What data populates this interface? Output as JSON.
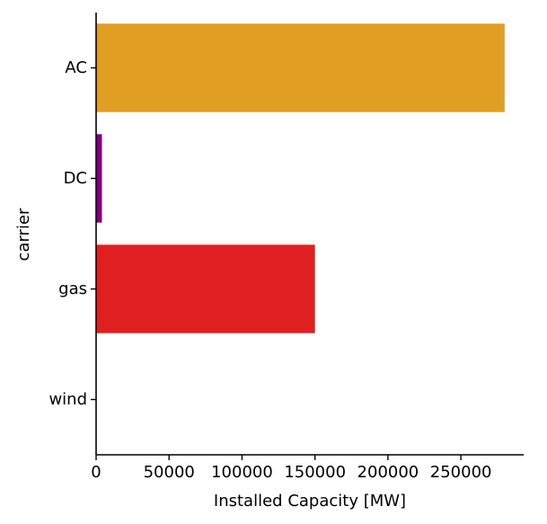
{
  "chart_data": {
    "type": "bar",
    "orientation": "horizontal",
    "title": "",
    "xlabel": "Installed Capacity [MW]",
    "ylabel": "carrier",
    "categories": [
      "AC",
      "DC",
      "gas",
      "wind"
    ],
    "values": [
      280000,
      4000,
      150000,
      0
    ],
    "colors": [
      "#e09e22",
      "#800080",
      "#e02020",
      "#2ca02c"
    ],
    "xlim": [
      0,
      293000
    ],
    "xticks": [
      0,
      50000,
      100000,
      150000,
      200000,
      250000
    ],
    "xtick_labels": [
      "0",
      "50000",
      "100000",
      "150000",
      "200000",
      "250000"
    ],
    "grid": false,
    "legend": false
  }
}
